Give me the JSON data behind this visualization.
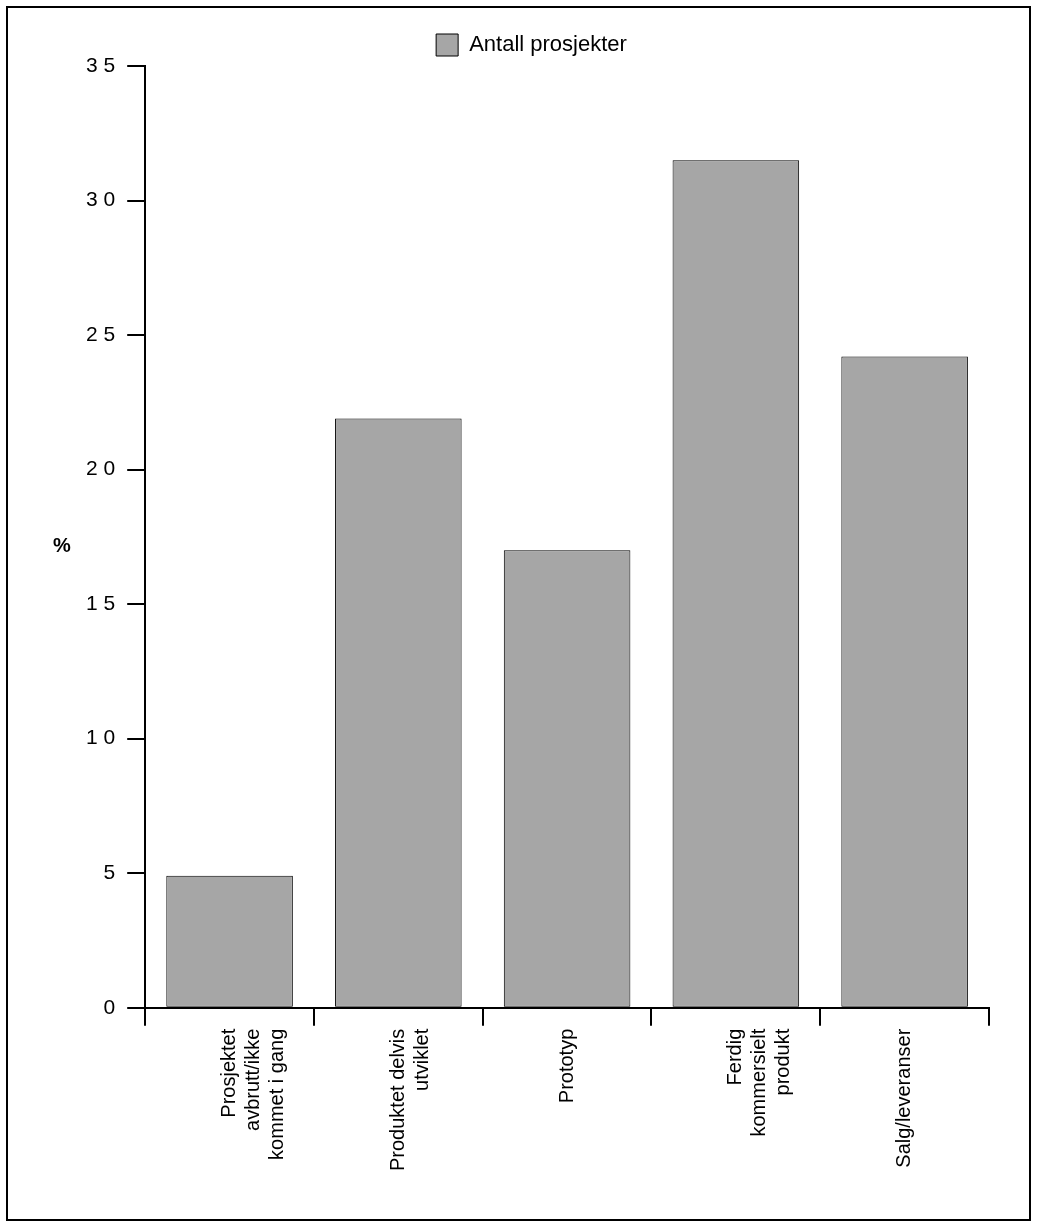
{
  "chart_data": {
    "type": "bar",
    "ylabel": "%",
    "legend": "top",
    "categories": [
      "Prosjektet avbrutt/ikke kommet i gang",
      "Produktet delvis utviklet",
      "Prototyp",
      "Ferdig kommersielt produkt",
      "Salg/leveranser"
    ],
    "series": [
      {
        "name": "Antall prosjekter",
        "color": "#a6a6a6",
        "values": [
          4.9,
          21.9,
          17.0,
          31.5,
          24.2
        ]
      }
    ],
    "ylim": [
      0,
      35
    ],
    "yticks": [
      0,
      5,
      10,
      15,
      20,
      25,
      30,
      35
    ],
    "grid": false
  }
}
